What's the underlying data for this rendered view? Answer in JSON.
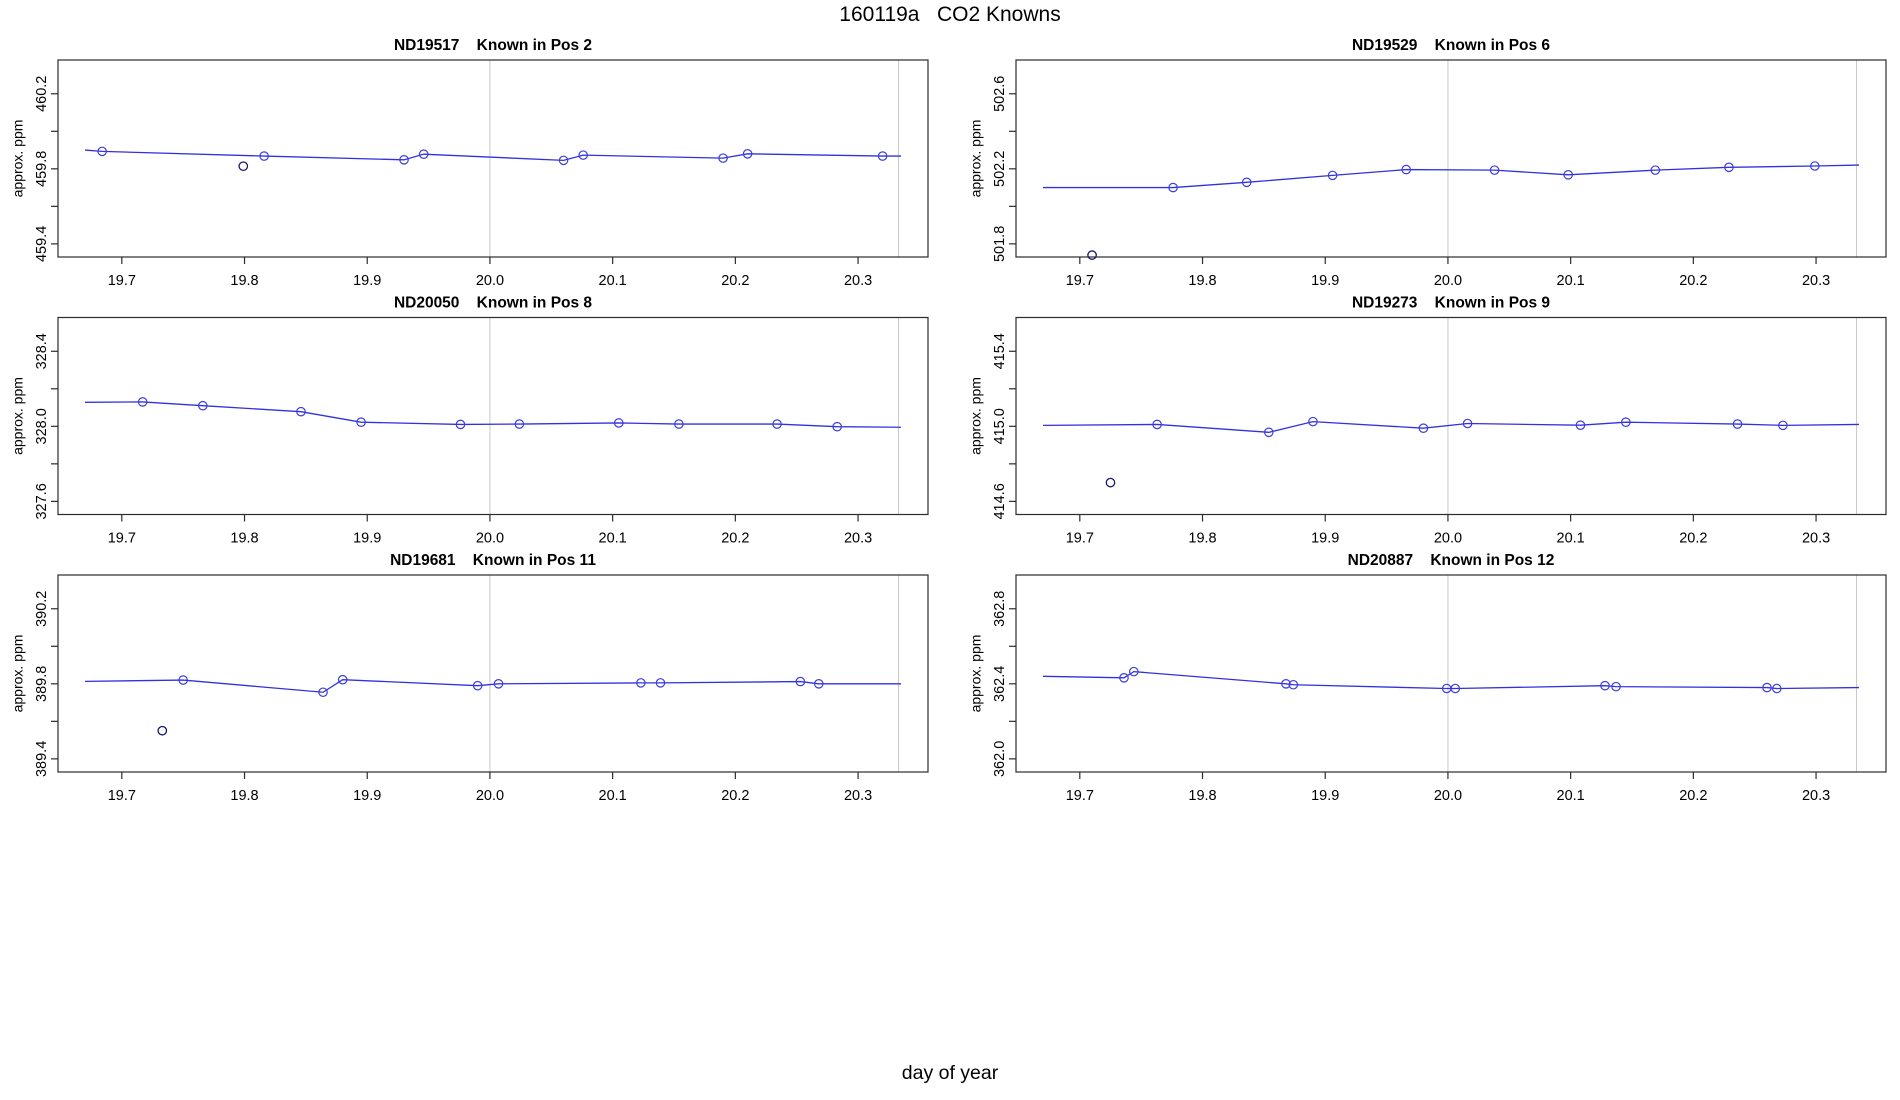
{
  "figure_title": "160119a   CO2 Knowns",
  "shared_xlabel": "day of year",
  "colors": {
    "line": "#3232dd",
    "marker": "#3c3ce0",
    "outlier": "#16166b",
    "grid": "#c8c8c8",
    "frame": "#2b2b2b",
    "text": "#000000",
    "background": "#ffffff"
  },
  "chart_data": {
    "type": "line",
    "title": "160119a   CO2 Knowns",
    "xlabel": "day of year",
    "ylabel": "approx. ppm",
    "xlim": [
      19.648,
      20.357
    ],
    "x_ticks": [
      19.7,
      19.8,
      19.9,
      20.0,
      20.1,
      20.2,
      20.3
    ],
    "x_tick_labels": [
      "19.7",
      "19.8",
      "19.9",
      "20.0",
      "20.1",
      "20.2",
      "20.3"
    ],
    "vlines": [
      20.0,
      20.333
    ],
    "grid": "vertical-only",
    "legend": "none",
    "panels": [
      {
        "name": "ND19517",
        "caption": "Known in Pos 2",
        "ylabel": "approx. ppm",
        "y_top_tick": 460.2,
        "y_tick_labels": [
          "460.2",
          "459.8",
          "459.4"
        ],
        "ylim": [
          459.33,
          460.38
        ],
        "series": {
          "x": [
            19.67,
            19.684,
            19.816,
            19.93,
            19.946,
            20.06,
            20.076,
            20.19,
            20.21,
            20.32,
            20.335
          ],
          "y": [
            459.9,
            459.893,
            459.868,
            459.848,
            459.878,
            459.845,
            459.873,
            459.857,
            459.88,
            459.868,
            459.868
          ],
          "m": [
            0,
            1,
            1,
            1,
            1,
            1,
            1,
            1,
            1,
            1,
            0
          ]
        },
        "outliers": [
          {
            "x": 19.799,
            "y": 459.814
          }
        ]
      },
      {
        "name": "ND19529",
        "caption": "Known in Pos 6",
        "ylabel": "approx. ppm",
        "y_top_tick": 502.6,
        "y_tick_labels": [
          "502.6",
          "502.2",
          "501.8"
        ],
        "ylim": [
          501.73,
          502.78
        ],
        "series": {
          "x": [
            19.67,
            19.776,
            19.836,
            19.906,
            19.966,
            20.038,
            20.098,
            20.169,
            20.229,
            20.299,
            20.335
          ],
          "y": [
            502.1,
            502.1,
            502.128,
            502.165,
            502.196,
            502.193,
            502.168,
            502.193,
            502.208,
            502.215,
            502.22
          ],
          "m": [
            0,
            1,
            1,
            1,
            1,
            1,
            1,
            1,
            1,
            1,
            0
          ]
        },
        "outliers": [
          {
            "x": 19.71,
            "y": 501.74
          }
        ]
      },
      {
        "name": "ND20050",
        "caption": "Known in Pos 8",
        "ylabel": "approx. ppm",
        "y_top_tick": 328.4,
        "y_tick_labels": [
          "328.4",
          "328.0",
          "327.6"
        ],
        "ylim": [
          327.53,
          328.58
        ],
        "series": {
          "x": [
            19.67,
            19.717,
            19.766,
            19.846,
            19.895,
            19.976,
            20.024,
            20.105,
            20.154,
            20.234,
            20.283,
            20.335
          ],
          "y": [
            328.128,
            328.13,
            328.11,
            328.078,
            328.022,
            328.01,
            328.012,
            328.018,
            328.012,
            328.012,
            327.998,
            327.995
          ],
          "m": [
            0,
            1,
            1,
            1,
            1,
            1,
            1,
            1,
            1,
            1,
            1,
            0
          ]
        },
        "outliers": []
      },
      {
        "name": "ND19273",
        "caption": "Known in Pos 9",
        "ylabel": "approx. ppm",
        "y_top_tick": 415.4,
        "y_tick_labels": [
          "415.4",
          "415.0",
          "414.6"
        ],
        "ylim": [
          414.53,
          415.58
        ],
        "series": {
          "x": [
            19.67,
            19.763,
            19.854,
            19.89,
            19.98,
            20.016,
            20.108,
            20.145,
            20.236,
            20.273,
            20.335
          ],
          "y": [
            415.005,
            415.01,
            414.968,
            415.025,
            414.99,
            415.015,
            415.006,
            415.022,
            415.012,
            415.005,
            415.01
          ],
          "m": [
            0,
            1,
            1,
            1,
            1,
            1,
            1,
            1,
            1,
            1,
            0
          ]
        },
        "outliers": [
          {
            "x": 19.725,
            "y": 414.7
          }
        ]
      },
      {
        "name": "ND19681",
        "caption": "Known in Pos 11",
        "ylabel": "approx. ppm",
        "y_top_tick": 390.2,
        "y_tick_labels": [
          "390.2",
          "389.8",
          "389.4"
        ],
        "ylim": [
          389.33,
          390.38
        ],
        "series": {
          "x": [
            19.67,
            19.75,
            19.864,
            19.88,
            19.99,
            20.007,
            20.123,
            20.139,
            20.253,
            20.268,
            20.335
          ],
          "y": [
            389.813,
            389.82,
            389.755,
            389.822,
            389.79,
            389.8,
            389.805,
            389.805,
            389.812,
            389.8,
            389.8
          ],
          "m": [
            0,
            1,
            1,
            1,
            1,
            1,
            1,
            1,
            1,
            1,
            0
          ]
        },
        "outliers": [
          {
            "x": 19.733,
            "y": 389.55
          }
        ]
      },
      {
        "name": "ND20887",
        "caption": "Known in Pos 12",
        "ylabel": "approx. ppm",
        "y_top_tick": 362.8,
        "y_tick_labels": [
          "362.8",
          "362.4",
          "362.0"
        ],
        "ylim": [
          361.93,
          362.98
        ],
        "series": {
          "x": [
            19.67,
            19.736,
            19.744,
            19.868,
            19.874,
            19.999,
            20.006,
            20.128,
            20.137,
            20.26,
            20.268,
            20.335
          ],
          "y": [
            362.44,
            362.432,
            362.465,
            362.4,
            362.395,
            362.375,
            362.375,
            362.39,
            362.385,
            362.38,
            362.375,
            362.38
          ],
          "m": [
            0,
            1,
            1,
            1,
            1,
            1,
            1,
            1,
            1,
            1,
            1,
            0
          ]
        },
        "outliers": []
      }
    ]
  }
}
